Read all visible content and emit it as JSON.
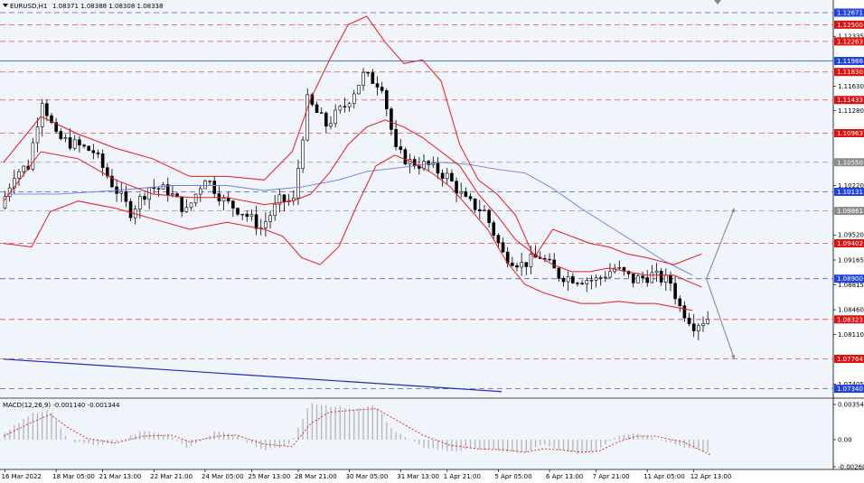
{
  "header": {
    "symbol": "EURUSD,H1",
    "ohlc": "1.08371 1.08388 1.08308 1.08338"
  },
  "colors": {
    "background": "#f0f4fb",
    "candle": "#000000",
    "bollinger": "#e8191f",
    "ma_slow": "#6b7fe0",
    "trendline": "#1f2bb3",
    "level_red": "#e05050",
    "level_blue": "#4a5fcc",
    "label_red": "#dd1111",
    "label_blue": "#2244dd",
    "label_gray": "#8c8c8c",
    "macd_hist": "#b4b4b4",
    "macd_signal": "#e02020"
  },
  "chart_data": [
    {
      "type": "candlestick",
      "title": "EURUSD,H1",
      "ylim": [
        1.0722,
        1.1285
      ],
      "price_ticks": [
        "1.12335",
        "1.11630",
        "1.11280",
        "1.10220",
        "1.09520",
        "1.09165",
        "1.08815",
        "1.08460",
        "1.08110",
        "1.07405"
      ],
      "x_tick_labels": [
        "16 Mar 2022",
        "18 Mar 05:00",
        "21 Mar 13:00",
        "22 Mar 21:00",
        "24 Mar 05:00",
        "25 Mar 13:00",
        "28 Mar 21:00",
        "30 Mar 05:00",
        "31 Mar 13:00",
        "1 Apr 21:00",
        "5 Apr 05:00",
        "6 Apr 13:00",
        "7 Apr 21:00",
        "11 Apr 05:00",
        "12 Apr 13:00"
      ],
      "price_path": [
        [
          0,
          1.099
        ],
        [
          3,
          1.104
        ],
        [
          6,
          1.105
        ],
        [
          9,
          1.1145
        ],
        [
          12,
          1.109
        ],
        [
          16,
          1.108
        ],
        [
          20,
          1.107
        ],
        [
          24,
          1.1025
        ],
        [
          28,
          1.0985
        ],
        [
          32,
          1.102
        ],
        [
          36,
          1.1015
        ],
        [
          40,
          1.0985
        ],
        [
          44,
          1.1035
        ],
        [
          48,
          1.1
        ],
        [
          52,
          1.0985
        ],
        [
          56,
          1.0962
        ],
        [
          60,
          1.1
        ],
        [
          63,
          1.1
        ],
        [
          66,
          1.1142
        ],
        [
          70,
          1.1108
        ],
        [
          74,
          1.1135
        ],
        [
          78,
          1.1178
        ],
        [
          82,
          1.1165
        ],
        [
          85,
          1.107
        ],
        [
          88,
          1.1055
        ],
        [
          92,
          1.105
        ],
        [
          96,
          1.1035
        ],
        [
          100,
          1.1
        ],
        [
          104,
          1.0985
        ],
        [
          108,
          1.0925
        ],
        [
          112,
          1.091
        ],
        [
          116,
          1.0922
        ],
        [
          120,
          1.0895
        ],
        [
          124,
          1.089
        ],
        [
          128,
          1.0888
        ],
        [
          132,
          1.0905
        ],
        [
          136,
          1.0888
        ],
        [
          140,
          1.0895
        ],
        [
          144,
          1.0885
        ],
        [
          146,
          1.085
        ],
        [
          149,
          1.0825
        ],
        [
          152,
          1.0834
        ]
      ],
      "bollinger_upper": [
        [
          0,
          1.1055
        ],
        [
          8,
          1.112
        ],
        [
          16,
          1.1095
        ],
        [
          24,
          1.1075
        ],
        [
          32,
          1.106
        ],
        [
          40,
          1.1035
        ],
        [
          48,
          1.1035
        ],
        [
          56,
          1.103
        ],
        [
          62,
          1.107
        ],
        [
          66,
          1.1145
        ],
        [
          70,
          1.12
        ],
        [
          74,
          1.125
        ],
        [
          78,
          1.1262
        ],
        [
          82,
          1.1225
        ],
        [
          86,
          1.1195
        ],
        [
          90,
          1.12
        ],
        [
          94,
          1.117
        ],
        [
          98,
          1.108
        ],
        [
          102,
          1.103
        ],
        [
          106,
          1.101
        ],
        [
          110,
          1.098
        ],
        [
          114,
          1.092
        ],
        [
          118,
          1.096
        ],
        [
          122,
          1.095
        ],
        [
          126,
          1.094
        ],
        [
          130,
          1.0935
        ],
        [
          134,
          1.0925
        ],
        [
          138,
          1.092
        ],
        [
          144,
          1.091
        ],
        [
          150,
          1.0925
        ]
      ],
      "bollinger_middle": [
        [
          0,
          1.1
        ],
        [
          8,
          1.107
        ],
        [
          16,
          1.106
        ],
        [
          24,
          1.103
        ],
        [
          32,
          1.101
        ],
        [
          40,
          1.1005
        ],
        [
          48,
          1.1005
        ],
        [
          56,
          1.0995
        ],
        [
          62,
          1.1
        ],
        [
          66,
          1.101
        ],
        [
          70,
          1.104
        ],
        [
          74,
          1.108
        ],
        [
          78,
          1.1105
        ],
        [
          82,
          1.1115
        ],
        [
          86,
          1.1105
        ],
        [
          90,
          1.109
        ],
        [
          94,
          1.107
        ],
        [
          98,
          1.105
        ],
        [
          102,
          1.101
        ],
        [
          106,
          1.098
        ],
        [
          110,
          1.0945
        ],
        [
          114,
          1.0925
        ],
        [
          118,
          1.091
        ],
        [
          122,
          1.09
        ],
        [
          126,
          1.09
        ],
        [
          130,
          1.0905
        ],
        [
          134,
          1.09
        ],
        [
          138,
          1.0895
        ],
        [
          144,
          1.0895
        ],
        [
          150,
          1.0878
        ]
      ],
      "bollinger_lower": [
        [
          0,
          1.094
        ],
        [
          6,
          1.0935
        ],
        [
          10,
          1.0985
        ],
        [
          16,
          1.1
        ],
        [
          24,
          1.099
        ],
        [
          32,
          1.0975
        ],
        [
          40,
          1.096
        ],
        [
          48,
          1.097
        ],
        [
          56,
          1.096
        ],
        [
          60,
          1.095
        ],
        [
          64,
          1.092
        ],
        [
          68,
          1.091
        ],
        [
          72,
          1.0935
        ],
        [
          76,
          1.0995
        ],
        [
          80,
          1.105
        ],
        [
          84,
          1.1065
        ],
        [
          88,
          1.1055
        ],
        [
          92,
          1.104
        ],
        [
          96,
          1.102
        ],
        [
          100,
          1.099
        ],
        [
          104,
          1.096
        ],
        [
          108,
          1.0915
        ],
        [
          112,
          1.0882
        ],
        [
          116,
          1.087
        ],
        [
          120,
          1.0862
        ],
        [
          124,
          1.0855
        ],
        [
          128,
          1.0855
        ],
        [
          132,
          1.0858
        ],
        [
          136,
          1.0855
        ],
        [
          140,
          1.0855
        ],
        [
          144,
          1.085
        ],
        [
          148,
          1.0845
        ]
      ],
      "ma_slow": [
        [
          0,
          1.101
        ],
        [
          12,
          1.101
        ],
        [
          24,
          1.1015
        ],
        [
          36,
          1.1022
        ],
        [
          48,
          1.1022
        ],
        [
          56,
          1.1015
        ],
        [
          64,
          1.102
        ],
        [
          72,
          1.103
        ],
        [
          78,
          1.1042
        ],
        [
          86,
          1.1048
        ],
        [
          94,
          1.1055
        ],
        [
          100,
          1.1052
        ],
        [
          106,
          1.1045
        ],
        [
          112,
          1.104
        ],
        [
          118,
          1.1018
        ],
        [
          124,
          1.099
        ],
        [
          130,
          1.0965
        ],
        [
          136,
          1.094
        ],
        [
          142,
          1.0915
        ],
        [
          148,
          1.0895
        ]
      ],
      "level_lines": [
        {
          "price": 1.12671,
          "label": "1.12671",
          "style": "dashed",
          "color": "blue"
        },
        {
          "price": 1.125,
          "label": "1.12500",
          "style": "dashed",
          "color": "red"
        },
        {
          "price": 1.12263,
          "label": "1.12263",
          "style": "dashed",
          "color": "red"
        },
        {
          "price": 1.11986,
          "label": "1.11986",
          "style": "solid",
          "color": "blue"
        },
        {
          "price": 1.1183,
          "label": "1.11830",
          "style": "dashed",
          "color": "red"
        },
        {
          "price": 1.11433,
          "label": "1.11433",
          "style": "dashed",
          "color": "red"
        },
        {
          "price": 1.10963,
          "label": "1.10963",
          "style": "dashed",
          "color": "red"
        },
        {
          "price": 1.1055,
          "label": "1.10550",
          "style": "dashed",
          "color": "gray"
        },
        {
          "price": 1.10131,
          "label": "1.10131",
          "style": "dashed",
          "color": "blue"
        },
        {
          "price": 1.09861,
          "label": "1.09861",
          "style": "dashed",
          "color": "gray"
        },
        {
          "price": 1.09402,
          "label": "1.09402",
          "style": "dashed",
          "color": "red"
        },
        {
          "price": 1.089,
          "label": "1.08900",
          "style": "dashed",
          "color": "blue"
        },
        {
          "price": 1.08323,
          "label": "1.08323",
          "style": "dashed",
          "color": "red"
        },
        {
          "price": 1.07764,
          "label": "1.07764",
          "style": "dashed",
          "color": "red"
        },
        {
          "price": 1.0734,
          "label": "1.07340",
          "style": "dashed",
          "color": "blue"
        }
      ],
      "trendline": {
        "from": [
          0,
          1.0776
        ],
        "to": [
          107,
          1.073
        ]
      },
      "scenario_arrows": [
        {
          "from": [
            151,
            1.089
          ],
          "to": [
            157,
            1.099
          ]
        },
        {
          "from": [
            151,
            1.089
          ],
          "to": [
            157,
            1.0776
          ]
        }
      ]
    },
    {
      "type": "histogram",
      "title": "MACD(12,26,9) -0.001140 -0.001344",
      "ylim": [
        -0.002607,
        0.003545
      ],
      "tick_labels": [
        "0.003545",
        "0.00",
        "-0.002607"
      ],
      "macd_path": [
        [
          0,
          0.0005
        ],
        [
          6,
          0.0022
        ],
        [
          10,
          0.0026
        ],
        [
          14,
          0.0
        ],
        [
          18,
          -0.0004
        ],
        [
          24,
          -0.0004
        ],
        [
          30,
          0.0008
        ],
        [
          36,
          0.0004
        ],
        [
          40,
          -0.0008
        ],
        [
          46,
          0.0008
        ],
        [
          50,
          0.0004
        ],
        [
          56,
          -0.001
        ],
        [
          62,
          -0.0004
        ],
        [
          66,
          0.0032
        ],
        [
          70,
          0.003
        ],
        [
          76,
          0.0026
        ],
        [
          80,
          0.003
        ],
        [
          84,
          0.0008
        ],
        [
          90,
          -0.0006
        ],
        [
          96,
          -0.001
        ],
        [
          102,
          -0.0008
        ],
        [
          108,
          -0.001
        ],
        [
          112,
          -0.0012
        ],
        [
          116,
          -0.0004
        ],
        [
          120,
          -0.001
        ],
        [
          124,
          -0.0012
        ],
        [
          128,
          -0.0008
        ],
        [
          132,
          0.0004
        ],
        [
          136,
          0.0006
        ],
        [
          140,
          0.0002
        ],
        [
          146,
          -0.0006
        ],
        [
          152,
          -0.00114
        ]
      ],
      "signal_path": [
        [
          0,
          0.0003
        ],
        [
          6,
          0.0015
        ],
        [
          10,
          0.0022
        ],
        [
          14,
          0.001
        ],
        [
          18,
          0.0001
        ],
        [
          24,
          -0.0003
        ],
        [
          30,
          0.0003
        ],
        [
          36,
          0.0004
        ],
        [
          40,
          -0.0002
        ],
        [
          46,
          0.0003
        ],
        [
          50,
          0.0004
        ],
        [
          56,
          -0.0004
        ],
        [
          62,
          -0.0006
        ],
        [
          66,
          0.0014
        ],
        [
          70,
          0.0024
        ],
        [
          76,
          0.0026
        ],
        [
          80,
          0.0027
        ],
        [
          84,
          0.0018
        ],
        [
          90,
          0.0004
        ],
        [
          96,
          -0.0005
        ],
        [
          102,
          -0.0008
        ],
        [
          108,
          -0.0009
        ],
        [
          112,
          -0.0011
        ],
        [
          116,
          -0.0008
        ],
        [
          120,
          -0.0009
        ],
        [
          124,
          -0.0011
        ],
        [
          128,
          -0.001
        ],
        [
          132,
          -0.0002
        ],
        [
          136,
          0.0003
        ],
        [
          140,
          0.0003
        ],
        [
          146,
          -0.0002
        ],
        [
          152,
          -0.001344
        ]
      ]
    }
  ]
}
